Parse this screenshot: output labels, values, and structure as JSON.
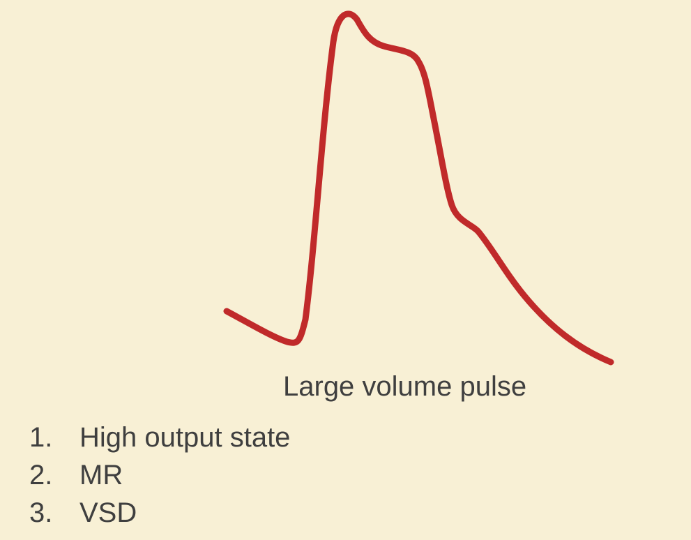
{
  "waveform": {
    "stroke_color": "#c02a2a",
    "shape": "pulse-waveform"
  },
  "caption": "Large volume pulse",
  "causes": [
    {
      "number": "1.",
      "label": "High output state"
    },
    {
      "number": "2.",
      "label": "MR"
    },
    {
      "number": "3.",
      "label": "VSD"
    }
  ]
}
